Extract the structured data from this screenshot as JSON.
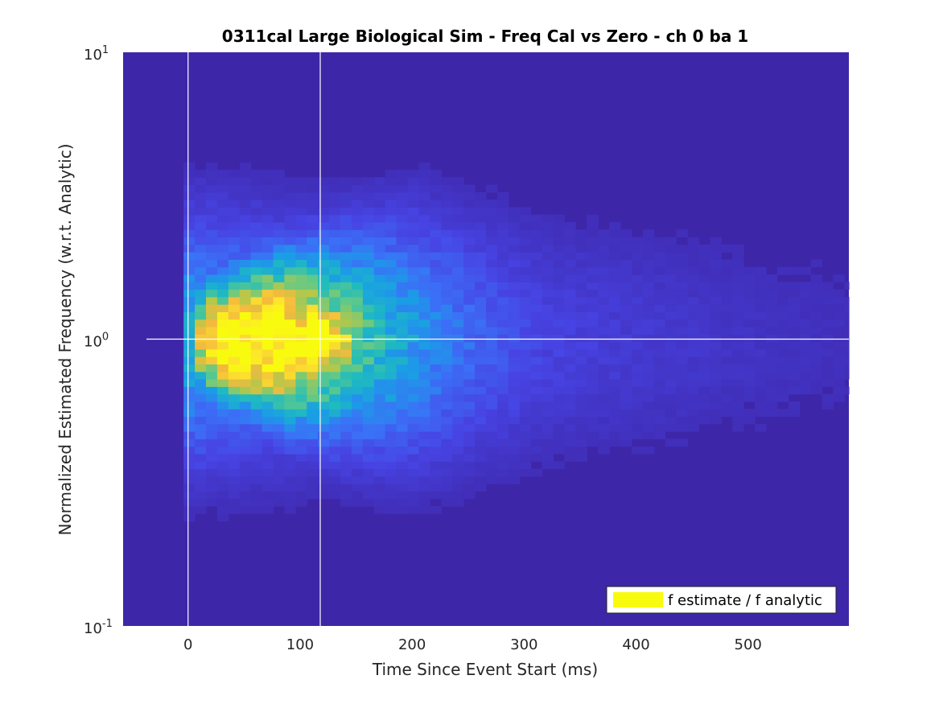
{
  "chart_data": {
    "type": "heatmap",
    "title": "0311cal Large Biological Sim - Freq Cal vs Zero - ch 0 ba 1",
    "xlabel": "Time Since Event Start (ms)",
    "ylabel": "Normalized Estimated Frequency (w.r.t. Analytic)",
    "xlim": [
      -58,
      590
    ],
    "ylim": [
      0.1,
      10
    ],
    "yscale": "log",
    "xticks": [
      0,
      100,
      200,
      300,
      400,
      500
    ],
    "yticks": [
      {
        "value": 0.1,
        "base": "10",
        "exp": "-1"
      },
      {
        "value": 1,
        "base": "10",
        "exp": "0"
      },
      {
        "value": 10,
        "base": "10",
        "exp": "1"
      }
    ],
    "grid": false,
    "reference_lines": {
      "x": [
        0,
        118
      ],
      "y": [
        1
      ]
    },
    "legend": {
      "entries": [
        "f estimate / f analytic"
      ],
      "location": "bottom-right"
    },
    "colormap": [
      "#3e26a8",
      "#4743e3",
      "#3b70f7",
      "#1b9de6",
      "#1fbbbf",
      "#5fc98a",
      "#b4c84a",
      "#f4ba3d",
      "#fce72a",
      "#f9fb0e"
    ],
    "colors": {
      "background": "#3e26a8",
      "legend_swatch": "#f9fb0e",
      "reference_lines": "#ffffff"
    },
    "density_peak": {
      "time_ms": 80,
      "ratio": 1.0,
      "count": 1.0
    },
    "density_model": {
      "time_decay_ms": 95,
      "time_rise_ms": 12,
      "log_ratio_spread": 0.12,
      "log_ratio_spread_growth": 0.16,
      "secondary_peak": {
        "time_ms": 118,
        "ratio": 1.0,
        "weight": 0.75
      },
      "floor": 0.03
    }
  }
}
